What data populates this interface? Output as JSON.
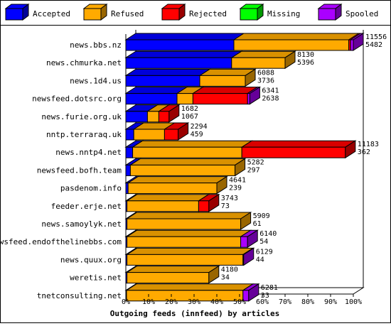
{
  "chart_data": {
    "type": "bar",
    "orientation": "horizontal",
    "stacked": true,
    "style": "3d",
    "title": "Outgoing feeds (innfeed) by articles",
    "legend_position": "top",
    "xlim": [
      0,
      100
    ],
    "x_tick_labels": [
      "0%",
      "10%",
      "20%",
      "30%",
      "40%",
      "50%",
      "60%",
      "70%",
      "80%",
      "90%",
      "100%"
    ],
    "grid": false,
    "categories": [
      "news.bbs.nz",
      "news.chmurka.net",
      "news.1d4.us",
      "newsfeed.dotsrc.org",
      "news.furie.org.uk",
      "nntp.terraraq.uk",
      "news.nntp4.net",
      "newsfeed.bofh.team",
      "pasdenom.info",
      "feeder.erje.net",
      "news.samoylyk.net",
      "newsfeed.endofthelinebbs.com",
      "news.quux.org",
      "weretis.net",
      "tnetconsulting.net"
    ],
    "series": [
      {
        "name": "Accepted",
        "color": "#0000ff",
        "values": [
          47.5,
          46.5,
          32.5,
          22.5,
          9.5,
          3.5,
          3.0,
          2.0,
          1.0,
          0.5,
          0.5,
          0.5,
          0.5,
          0.5,
          0.3
        ]
      },
      {
        "name": "Refused",
        "color": "#ffaa00",
        "values": [
          50.5,
          23.5,
          20.0,
          7.0,
          5.0,
          13.5,
          48.0,
          46.0,
          39.0,
          31.5,
          50.0,
          50.0,
          51.0,
          36.0,
          51.2
        ]
      },
      {
        "name": "Rejected",
        "color": "#ff0000",
        "values": [
          0.8,
          0.0,
          0.0,
          24.0,
          4.5,
          6.0,
          45.5,
          0.0,
          0.0,
          4.5,
          0.0,
          0.0,
          0.0,
          0.0,
          0.0
        ]
      },
      {
        "name": "Missing",
        "color": "#00ff00",
        "values": [
          0,
          0,
          0,
          0,
          0,
          0,
          0,
          0,
          0,
          0,
          0,
          0,
          0,
          0,
          0
        ]
      },
      {
        "name": "Spooled",
        "color": "#aa00ff",
        "values": [
          1.2,
          0.0,
          0.0,
          1.0,
          0.0,
          0.0,
          0.0,
          0.0,
          0.0,
          0.0,
          0.0,
          3.0,
          0.3,
          0.0,
          2.5
        ]
      }
    ],
    "labels_top": [
      "11556",
      "8130",
      "6088",
      "6341",
      "1682",
      "2294",
      "11183",
      "5282",
      "4641",
      "3743",
      "5909",
      "6140",
      "6129",
      "4180",
      "6281"
    ],
    "labels_bottom": [
      "5482",
      "5396",
      "3736",
      "2638",
      "1067",
      "459",
      "362",
      "297",
      "239",
      "73",
      "61",
      "54",
      "44",
      "34",
      "33"
    ]
  }
}
